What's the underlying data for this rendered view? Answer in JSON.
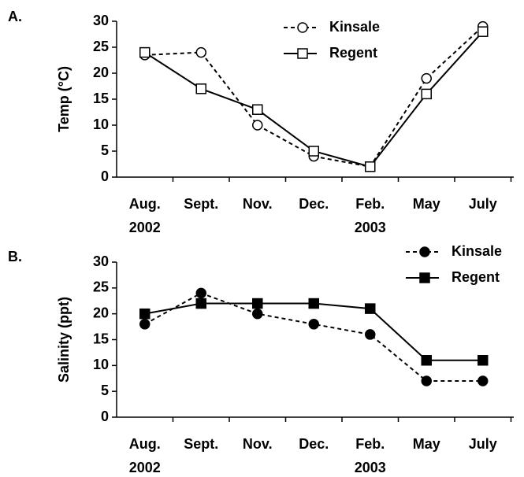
{
  "chart_data": [
    {
      "type": "line",
      "panel_label": "A.",
      "ylabel": "Temp (°C)",
      "categories": [
        "Aug. 2002",
        "Sept.",
        "Nov.",
        "Dec.",
        "Feb. 2003",
        "May",
        "July"
      ],
      "ylim": [
        0,
        30
      ],
      "yticks": [
        0,
        5,
        10,
        15,
        20,
        25,
        30
      ],
      "series": [
        {
          "name": "Kinsale",
          "color": "#000000",
          "dash": true,
          "marker": "circle",
          "filled": false,
          "values": [
            23.5,
            24,
            10,
            4,
            2,
            19,
            29
          ]
        },
        {
          "name": "Regent",
          "color": "#000000",
          "dash": false,
          "marker": "square",
          "filled": false,
          "values": [
            24,
            17,
            13,
            5,
            2,
            16,
            28
          ]
        }
      ]
    },
    {
      "type": "line",
      "panel_label": "B.",
      "ylabel": "Salinity (ppt)",
      "categories": [
        "Aug. 2002",
        "Sept.",
        "Nov.",
        "Dec.",
        "Feb. 2003",
        "May",
        "July"
      ],
      "ylim": [
        0,
        30
      ],
      "yticks": [
        0,
        5,
        10,
        15,
        20,
        25,
        30
      ],
      "series": [
        {
          "name": "Kinsale",
          "color": "#000000",
          "dash": true,
          "marker": "circle",
          "filled": true,
          "values": [
            18,
            24,
            20,
            18,
            16,
            7,
            7
          ]
        },
        {
          "name": "Regent",
          "color": "#000000",
          "dash": false,
          "marker": "square",
          "filled": true,
          "values": [
            20,
            22,
            22,
            22,
            21,
            11,
            11
          ]
        }
      ]
    }
  ]
}
